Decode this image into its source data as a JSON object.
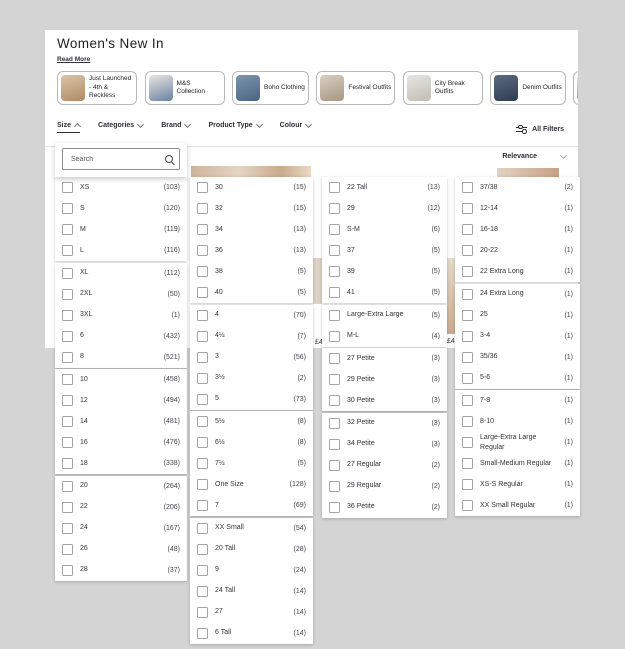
{
  "header": {
    "title": "Women's New In",
    "read_more": "Read More"
  },
  "category_chips": [
    {
      "label": "Just Launched - 4th & Reckless",
      "thumb": [
        "#d9c4a8",
        "#b08a63"
      ]
    },
    {
      "label": "M&S Collection",
      "thumb": [
        "#e8e6e2",
        "#6b82a0"
      ]
    },
    {
      "label": "Boho Clothing",
      "thumb": [
        "#7d94ac",
        "#4a6583"
      ]
    },
    {
      "label": "Festival Outfits",
      "thumb": [
        "#d8cfc2",
        "#a69681"
      ]
    },
    {
      "label": "City Break Outfits",
      "thumb": [
        "#e5e5e3",
        "#c2bdb4"
      ]
    },
    {
      "label": "Denim Outfits",
      "thumb": [
        "#5c6b80",
        "#2e3c52"
      ]
    },
    {
      "label": "",
      "thumb": [
        "#e8e8e8",
        "#777777"
      ]
    }
  ],
  "filter_bar": {
    "filters": [
      {
        "label": "Size",
        "expanded": true
      },
      {
        "label": "Categories",
        "expanded": false
      },
      {
        "label": "Brand",
        "expanded": false
      },
      {
        "label": "Product Type",
        "expanded": false
      },
      {
        "label": "Colour",
        "expanded": false
      }
    ],
    "all_filters": "All Filters"
  },
  "sort": {
    "selected": "Relevance"
  },
  "size_dropdown": {
    "search_placeholder": "Search",
    "columns": [
      {
        "groups": [
          {
            "options": [
              {
                "label": "XS",
                "count": 103
              },
              {
                "label": "S",
                "count": 120
              },
              {
                "label": "M",
                "count": 119
              },
              {
                "label": "L",
                "count": 116
              }
            ]
          },
          {
            "options": [
              {
                "label": "XL",
                "count": 112
              },
              {
                "label": "2XL",
                "count": 50
              },
              {
                "label": "3XL",
                "count": 1
              },
              {
                "label": "6",
                "count": 432
              },
              {
                "label": "8",
                "count": 521
              }
            ]
          },
          {
            "options": [
              {
                "label": "10",
                "count": 458
              },
              {
                "label": "12",
                "count": 494
              },
              {
                "label": "14",
                "count": 481
              },
              {
                "label": "16",
                "count": 476
              },
              {
                "label": "18",
                "count": 338
              }
            ]
          },
          {
            "options": [
              {
                "label": "20",
                "count": 264
              },
              {
                "label": "22",
                "count": 206
              },
              {
                "label": "24",
                "count": 167
              },
              {
                "label": "26",
                "count": 48
              },
              {
                "label": "28",
                "count": 37
              }
            ]
          }
        ]
      },
      {
        "groups": [
          {
            "options": [
              {
                "label": "30",
                "count": 15
              },
              {
                "label": "32",
                "count": 15
              },
              {
                "label": "34",
                "count": 13
              },
              {
                "label": "36",
                "count": 13
              },
              {
                "label": "38",
                "count": 5
              },
              {
                "label": "40",
                "count": 5
              }
            ]
          },
          {
            "options": [
              {
                "label": "4",
                "count": 70
              },
              {
                "label": "4½",
                "count": 7
              },
              {
                "label": "3",
                "count": 56
              },
              {
                "label": "3½",
                "count": 2
              },
              {
                "label": "5",
                "count": 73
              }
            ]
          },
          {
            "options": [
              {
                "label": "5½",
                "count": 8
              },
              {
                "label": "6½",
                "count": 8
              },
              {
                "label": "7½",
                "count": 5
              },
              {
                "label": "One Size",
                "count": 128
              },
              {
                "label": "7",
                "count": 69
              }
            ]
          },
          {
            "options": [
              {
                "label": "XX Small",
                "count": 54
              },
              {
                "label": "20 Tall",
                "count": 28
              },
              {
                "label": "9",
                "count": 24
              },
              {
                "label": "24 Tall",
                "count": 14
              },
              {
                "label": "27",
                "count": 14
              },
              {
                "label": "6 Tall",
                "count": 14
              }
            ]
          }
        ]
      },
      {
        "groups": [
          {
            "options": [
              {
                "label": "22 Tall",
                "count": 13
              },
              {
                "label": "29",
                "count": 12
              },
              {
                "label": "S-M",
                "count": 6
              },
              {
                "label": "37",
                "count": 5
              },
              {
                "label": "39",
                "count": 5
              },
              {
                "label": "41",
                "count": 5
              }
            ]
          },
          {
            "options": [
              {
                "label": "Large-Extra Large",
                "count": 5
              },
              {
                "label": "M-L",
                "count": 4
              }
            ]
          },
          {
            "options": [
              {
                "label": "27 Petite",
                "count": 3
              },
              {
                "label": "29 Petite",
                "count": 3
              },
              {
                "label": "30 Petite",
                "count": 3
              }
            ]
          },
          {
            "options": [
              {
                "label": "32 Petite",
                "count": 3
              },
              {
                "label": "34 Petite",
                "count": 3
              },
              {
                "label": "27 Regular",
                "count": 2
              },
              {
                "label": "29 Regular",
                "count": 2
              },
              {
                "label": "36 Petite",
                "count": 2
              }
            ]
          }
        ]
      },
      {
        "groups": [
          {
            "options": [
              {
                "label": "37/38",
                "count": 2
              },
              {
                "label": "12-14",
                "count": 1
              },
              {
                "label": "16-18",
                "count": 1
              },
              {
                "label": "20-22",
                "count": 1
              },
              {
                "label": "22 Extra Long",
                "count": 1
              }
            ]
          },
          {
            "options": [
              {
                "label": "24 Extra Long",
                "count": 1
              },
              {
                "label": "25",
                "count": 1
              },
              {
                "label": "3-4",
                "count": 1
              },
              {
                "label": "35/36",
                "count": 1
              },
              {
                "label": "5-6",
                "count": 1
              }
            ]
          },
          {
            "options": [
              {
                "label": "7-8",
                "count": 1
              },
              {
                "label": "8-10",
                "count": 1
              },
              {
                "label": "Large-Extra Large Regular",
                "count": 1
              },
              {
                "label": "Small-Medium Regular",
                "count": 1
              },
              {
                "label": "XS-S Regular",
                "count": 1
              },
              {
                "label": "XX Small Regular",
                "count": 1
              }
            ]
          }
        ]
      }
    ]
  },
  "background_fragments": {
    "prices": [
      "£",
      "£4",
      "£4"
    ]
  }
}
